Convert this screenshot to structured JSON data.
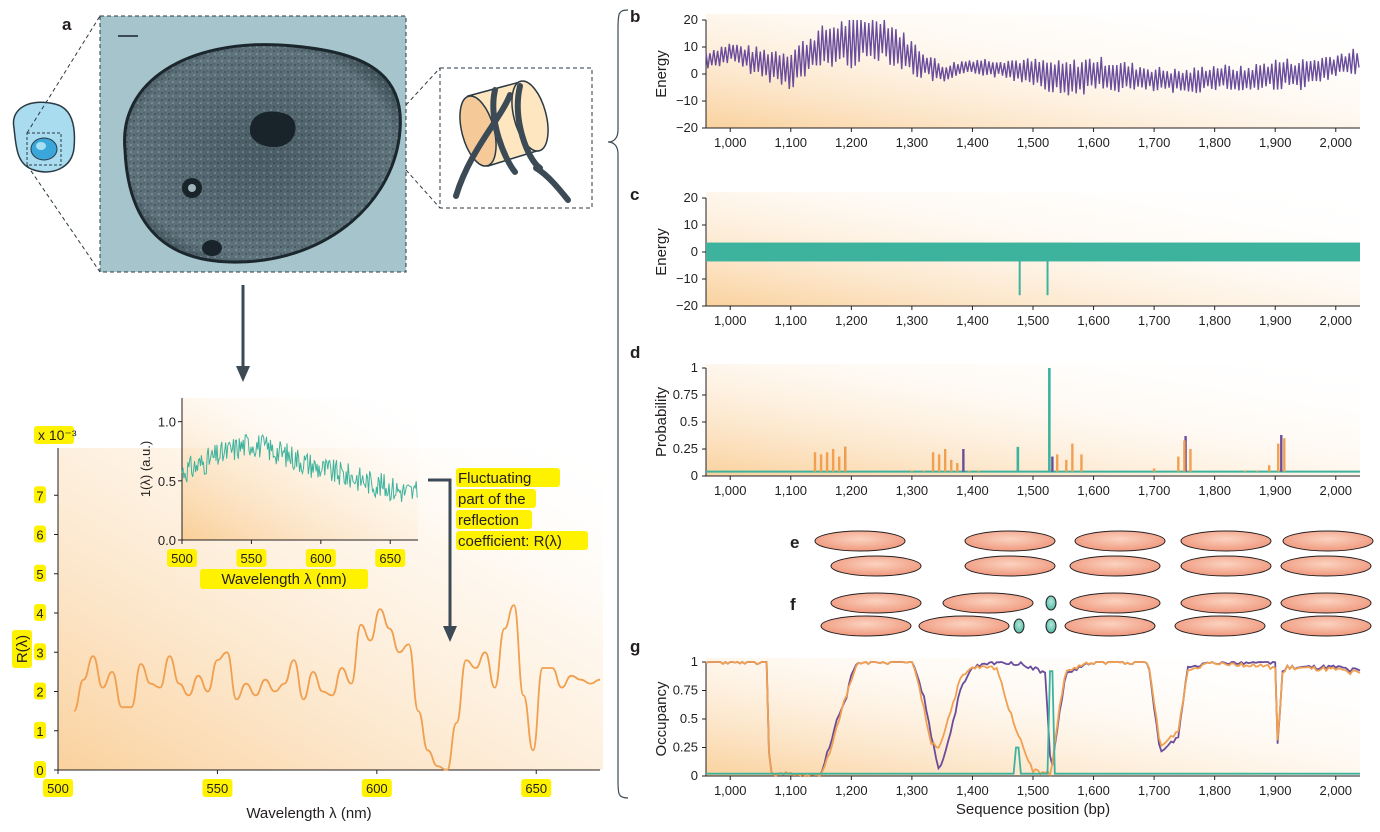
{
  "panel_letters": {
    "a": "a",
    "b": "b",
    "c": "c",
    "d": "d",
    "e": "e",
    "f": "f",
    "g": "g"
  },
  "colors": {
    "purple": "#6a4c9c",
    "teal": "#3db39e",
    "orange": "#f0a050",
    "dark": "#3b4a55",
    "highlight": "#fff200",
    "nucleosome": "#f3a58c"
  },
  "panel_a": {
    "icons": [
      "cell-icon",
      "nucleus-micrograph-image",
      "nucleosome-icon",
      "down-arrow-icon"
    ],
    "annotation": [
      "Fluctuating",
      "part of the",
      "reflection",
      "coefficient: R(λ)"
    ]
  },
  "chart_data": [
    {
      "id": "a-inset",
      "type": "line",
      "xlabel": "Wavelength λ (nm)",
      "ylabel": "1(λ) (a.u.)",
      "xlim": [
        500,
        670
      ],
      "ylim": [
        0.0,
        1.2
      ],
      "xticks": [
        "500",
        "550",
        "600",
        "650"
      ],
      "yticks": [
        "0.0",
        "0.5",
        "1.0"
      ],
      "series": [
        {
          "color": "teal",
          "x": [
            500,
            510,
            520,
            530,
            540,
            550,
            560,
            570,
            580,
            590,
            600,
            610,
            620,
            630,
            640,
            650,
            660,
            670
          ],
          "y": [
            0.58,
            0.62,
            0.68,
            0.73,
            0.78,
            0.82,
            0.78,
            0.74,
            0.7,
            0.65,
            0.6,
            0.57,
            0.54,
            0.51,
            0.47,
            0.44,
            0.41,
            0.39
          ]
        }
      ]
    },
    {
      "id": "a-main",
      "type": "line",
      "xlabel": "Wavelength λ (nm)",
      "ylabel": "R(λ)",
      "scale_label": "x 10⁻³",
      "xlim": [
        500,
        670
      ],
      "ylim": [
        0,
        8
      ],
      "xticks": [
        "500",
        "550",
        "600",
        "650"
      ],
      "yticks": [
        "0",
        "1",
        "2",
        "3",
        "4",
        "5",
        "6",
        "7"
      ],
      "series": [
        {
          "color": "orange",
          "x": [
            505,
            508,
            511,
            514,
            517,
            520,
            523,
            526,
            529,
            532,
            535,
            538,
            541,
            544,
            547,
            550,
            553,
            556,
            559,
            562,
            565,
            568,
            571,
            574,
            577,
            580,
            583,
            586,
            589,
            592,
            595,
            598,
            601,
            604,
            607,
            610,
            613,
            616,
            619,
            622,
            625,
            628,
            631,
            634,
            637,
            640,
            643,
            646,
            649,
            652,
            655,
            658,
            661,
            664,
            667,
            670
          ],
          "y": [
            1.5,
            2.3,
            2.9,
            2.1,
            2.5,
            1.6,
            1.6,
            2.7,
            2.2,
            2.1,
            2.9,
            2.2,
            1.9,
            2.4,
            2.0,
            2.8,
            3.0,
            1.8,
            2.2,
            1.9,
            2.3,
            2.0,
            2.2,
            2.8,
            1.8,
            2.5,
            2.0,
            1.9,
            2.6,
            2.2,
            3.7,
            3.3,
            4.1,
            3.6,
            3.0,
            3.2,
            1.5,
            0.5,
            0.1,
            0.0,
            1.2,
            2.8,
            2.6,
            3.0,
            2.1,
            3.6,
            4.2,
            1.9,
            0.5,
            2.6,
            2.6,
            2.1,
            2.4,
            2.3,
            2.2,
            2.3
          ]
        }
      ]
    },
    {
      "id": "b",
      "type": "line",
      "ylabel": "Energy",
      "xlim": [
        960,
        2040
      ],
      "ylim": [
        -20,
        20
      ],
      "yticks": [
        "20",
        "10",
        "0",
        "−10",
        "−20"
      ],
      "xticks": [
        "1,000",
        "1,100",
        "1,200",
        "1,300",
        "1,400",
        "1,500",
        "1,600",
        "1,700",
        "1,800",
        "1,900",
        "2,000"
      ],
      "series": [
        {
          "color": "purple",
          "envelope_x": [
            960,
            1000,
            1050,
            1100,
            1150,
            1200,
            1250,
            1300,
            1350,
            1400,
            1450,
            1500,
            1550,
            1600,
            1650,
            1700,
            1750,
            1800,
            1850,
            1900,
            1950,
            2000,
            2040
          ],
          "envelope_y": [
            5,
            8,
            4,
            2,
            10,
            12,
            14,
            6,
            0,
            3,
            2,
            1,
            -2,
            0,
            -1,
            -2,
            -3,
            -1,
            -2,
            0,
            0,
            3,
            5
          ],
          "envelope_amp": [
            4,
            4,
            6,
            8,
            8,
            10,
            9,
            7,
            4,
            3,
            4,
            5,
            7,
            7,
            6,
            5,
            5,
            5,
            5,
            6,
            6,
            5,
            5
          ]
        }
      ]
    },
    {
      "id": "c",
      "type": "line",
      "ylabel": "Energy",
      "xlim": [
        960,
        2040
      ],
      "ylim": [
        -20,
        20
      ],
      "yticks": [
        "20",
        "10",
        "0",
        "−10",
        "−20"
      ],
      "xticks": [
        "1,000",
        "1,100",
        "1,200",
        "1,300",
        "1,400",
        "1,500",
        "1,600",
        "1,700",
        "1,800",
        "1,900",
        "2,000"
      ],
      "series": [
        {
          "color": "teal",
          "band_range": [
            -3.5,
            3.5
          ],
          "spikes": [
            {
              "x": 1478,
              "y": -16
            },
            {
              "x": 1524,
              "y": -16
            }
          ]
        }
      ]
    },
    {
      "id": "d",
      "type": "line",
      "ylabel": "Probability",
      "xlim": [
        960,
        2040
      ],
      "ylim": [
        0,
        1
      ],
      "yticks": [
        "1",
        "0.75",
        "0.5",
        "0.25",
        "0"
      ],
      "xticks": [
        "1,000",
        "1,100",
        "1,200",
        "1,300",
        "1,400",
        "1,500",
        "1,600",
        "1,700",
        "1,800",
        "1,900",
        "2,000"
      ],
      "spikes_orange": [
        [
          1140,
          0.22
        ],
        [
          1150,
          0.2
        ],
        [
          1160,
          0.22
        ],
        [
          1170,
          0.25
        ],
        [
          1180,
          0.18
        ],
        [
          1190,
          0.27
        ],
        [
          1300,
          0.05
        ],
        [
          1320,
          0.05
        ],
        [
          1335,
          0.22
        ],
        [
          1345,
          0.2
        ],
        [
          1355,
          0.25
        ],
        [
          1365,
          0.15
        ],
        [
          1375,
          0.12
        ],
        [
          1395,
          0.05
        ],
        [
          1410,
          0.05
        ],
        [
          1540,
          0.2
        ],
        [
          1555,
          0.15
        ],
        [
          1565,
          0.3
        ],
        [
          1580,
          0.2
        ],
        [
          1700,
          0.07
        ],
        [
          1740,
          0.18
        ],
        [
          1750,
          0.33
        ],
        [
          1760,
          0.25
        ],
        [
          1850,
          0.05
        ],
        [
          1870,
          0.05
        ],
        [
          1890,
          0.1
        ],
        [
          1905,
          0.3
        ],
        [
          1915,
          0.35
        ],
        [
          2030,
          0.04
        ]
      ],
      "spikes_purple": [
        [
          1190,
          0.27
        ],
        [
          1385,
          0.25
        ],
        [
          1532,
          0.18
        ],
        [
          1752,
          0.37
        ],
        [
          1910,
          0.38
        ]
      ],
      "spikes_teal": [
        [
          1475,
          0.27
        ],
        [
          1527,
          1.0
        ]
      ]
    },
    {
      "id": "g",
      "type": "line",
      "xlabel": "Sequence position (bp)",
      "ylabel": "Occupancy",
      "xlim": [
        960,
        2040
      ],
      "ylim": [
        0,
        1
      ],
      "yticks": [
        "1",
        "0.75",
        "0.5",
        "0.25",
        "0"
      ],
      "xticks": [
        "1,000",
        "1,100",
        "1,200",
        "1,300",
        "1,400",
        "1,500",
        "1,600",
        "1,700",
        "1,800",
        "1,900",
        "2,000"
      ],
      "series": [
        {
          "color": "purple",
          "x": [
            960,
            1060,
            1065,
            1150,
            1160,
            1180,
            1190,
            1200,
            1210,
            1300,
            1310,
            1320,
            1330,
            1345,
            1360,
            1380,
            1400,
            1440,
            1460,
            1480,
            1500,
            1520,
            1530,
            1545,
            1555,
            1600,
            1690,
            1700,
            1710,
            1740,
            1755,
            1790,
            1800,
            1900,
            1905,
            1910,
            1920,
            2000,
            2040
          ],
          "y": [
            1.0,
            1.0,
            0.02,
            0.0,
            0.2,
            0.55,
            0.65,
            0.9,
            1.0,
            1.0,
            0.85,
            0.7,
            0.4,
            0.05,
            0.3,
            0.75,
            0.95,
            1.0,
            1.0,
            0.98,
            0.95,
            0.9,
            0.02,
            0.6,
            0.9,
            1.0,
            1.0,
            0.6,
            0.2,
            0.35,
            0.95,
            1.0,
            1.0,
            1.0,
            0.1,
            0.9,
            0.95,
            0.95,
            0.92
          ]
        },
        {
          "color": "orange",
          "x": [
            960,
            1060,
            1065,
            1150,
            1160,
            1175,
            1185,
            1200,
            1210,
            1300,
            1310,
            1320,
            1330,
            1345,
            1360,
            1380,
            1400,
            1440,
            1460,
            1480,
            1500,
            1520,
            1530,
            1545,
            1555,
            1600,
            1690,
            1700,
            1710,
            1740,
            1755,
            1790,
            1800,
            1900,
            1905,
            1910,
            1920,
            2000,
            2040
          ],
          "y": [
            1.0,
            1.0,
            0.02,
            0.0,
            0.15,
            0.4,
            0.6,
            0.85,
            1.0,
            1.0,
            0.82,
            0.6,
            0.3,
            0.25,
            0.5,
            0.85,
            0.95,
            0.95,
            0.6,
            0.3,
            0.05,
            0.02,
            0.03,
            0.65,
            0.92,
            1.0,
            1.0,
            0.65,
            0.25,
            0.4,
            0.92,
            1.0,
            1.0,
            0.95,
            0.15,
            0.88,
            0.95,
            0.93,
            0.9
          ]
        },
        {
          "color": "teal",
          "x": [
            960,
            1470,
            1472,
            1478,
            1480,
            1525,
            1527,
            1533,
            1535,
            2040
          ],
          "y": [
            0.02,
            0.02,
            0.25,
            0.25,
            0.02,
            0.02,
            0.92,
            0.92,
            0.02,
            0.02
          ]
        }
      ]
    }
  ]
}
